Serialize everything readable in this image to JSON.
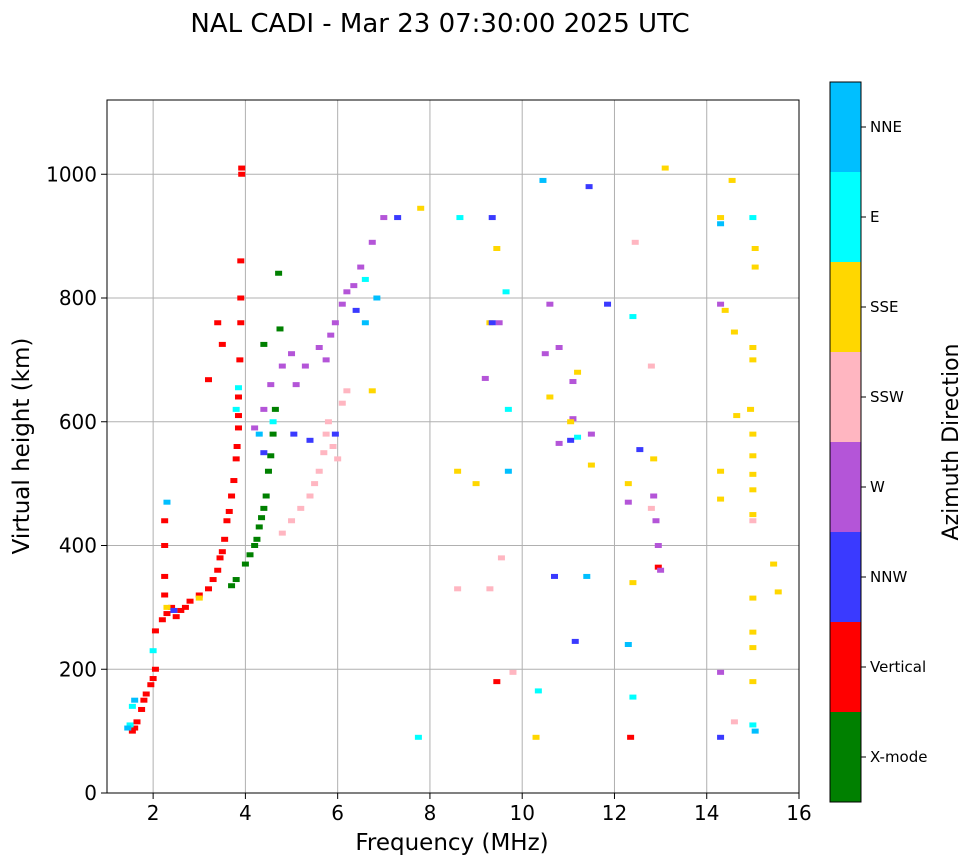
{
  "chart_data": {
    "type": "scatter",
    "title": "NAL CADI - Mar 23 07:30:00 2025 UTC",
    "xlabel": "Frequency (MHz)",
    "ylabel": "Virtual height (km)",
    "xlim": [
      1.0,
      16.0
    ],
    "ylim": [
      0,
      1120
    ],
    "xticks": [
      "2",
      "4",
      "6",
      "8",
      "10",
      "12",
      "14",
      "16"
    ],
    "yticks": [
      "0",
      "200",
      "400",
      "600",
      "800",
      "1000"
    ],
    "grid": true,
    "colorbar": {
      "label": "Azimuth Direction",
      "categories": [
        {
          "name": "X-mode",
          "color": "#008000"
        },
        {
          "name": "Vertical",
          "color": "#ff0000"
        },
        {
          "name": "NNW",
          "color": "#3a3aff"
        },
        {
          "name": "W",
          "color": "#b455d8"
        },
        {
          "name": "SSW",
          "color": "#ffb6c1"
        },
        {
          "name": "SSE",
          "color": "#ffd700"
        },
        {
          "name": "E",
          "color": "#00ffff"
        },
        {
          "name": "NNE",
          "color": "#00bfff"
        }
      ]
    },
    "series": [
      {
        "name": "Vertical",
        "points": [
          [
            1.55,
            100
          ],
          [
            1.6,
            105
          ],
          [
            1.65,
            115
          ],
          [
            1.75,
            135
          ],
          [
            1.8,
            150
          ],
          [
            1.85,
            160
          ],
          [
            1.95,
            175
          ],
          [
            2.0,
            185
          ],
          [
            2.05,
            200
          ],
          [
            2.05,
            262
          ],
          [
            2.2,
            280
          ],
          [
            2.25,
            320
          ],
          [
            2.25,
            350
          ],
          [
            2.25,
            400
          ],
          [
            2.25,
            440
          ],
          [
            2.3,
            290
          ],
          [
            2.4,
            300
          ],
          [
            2.5,
            285
          ],
          [
            2.6,
            295
          ],
          [
            2.7,
            300
          ],
          [
            2.8,
            310
          ],
          [
            3.0,
            320
          ],
          [
            3.2,
            330
          ],
          [
            3.3,
            345
          ],
          [
            3.4,
            360
          ],
          [
            3.45,
            380
          ],
          [
            3.5,
            390
          ],
          [
            3.55,
            410
          ],
          [
            3.6,
            440
          ],
          [
            3.65,
            455
          ],
          [
            3.7,
            480
          ],
          [
            3.75,
            505
          ],
          [
            3.8,
            540
          ],
          [
            3.82,
            560
          ],
          [
            3.85,
            590
          ],
          [
            3.85,
            610
          ],
          [
            3.85,
            640
          ],
          [
            3.88,
            700
          ],
          [
            3.9,
            760
          ],
          [
            3.9,
            800
          ],
          [
            3.9,
            860
          ],
          [
            3.92,
            1000
          ],
          [
            3.92,
            1010
          ],
          [
            3.4,
            760
          ],
          [
            3.5,
            725
          ],
          [
            3.2,
            668
          ],
          [
            9.45,
            180
          ],
          [
            12.35,
            90
          ],
          [
            12.95,
            365
          ]
        ]
      },
      {
        "name": "X-mode",
        "points": [
          [
            3.7,
            335
          ],
          [
            3.8,
            345
          ],
          [
            4.0,
            370
          ],
          [
            4.1,
            385
          ],
          [
            4.2,
            400
          ],
          [
            4.25,
            410
          ],
          [
            4.3,
            430
          ],
          [
            4.35,
            445
          ],
          [
            4.4,
            460
          ],
          [
            4.45,
            480
          ],
          [
            4.5,
            520
          ],
          [
            4.55,
            545
          ],
          [
            4.6,
            580
          ],
          [
            4.65,
            620
          ],
          [
            4.75,
            750
          ],
          [
            4.72,
            840
          ],
          [
            4.4,
            725
          ]
        ]
      },
      {
        "name": "W",
        "points": [
          [
            4.2,
            590
          ],
          [
            4.4,
            620
          ],
          [
            4.55,
            660
          ],
          [
            4.8,
            690
          ],
          [
            5.0,
            710
          ],
          [
            5.1,
            660
          ],
          [
            5.3,
            690
          ],
          [
            5.6,
            720
          ],
          [
            5.75,
            700
          ],
          [
            5.85,
            740
          ],
          [
            5.95,
            760
          ],
          [
            6.1,
            790
          ],
          [
            6.2,
            810
          ],
          [
            6.35,
            820
          ],
          [
            6.5,
            850
          ],
          [
            6.75,
            890
          ],
          [
            7.0,
            930
          ],
          [
            9.2,
            670
          ],
          [
            9.5,
            760
          ],
          [
            10.5,
            710
          ],
          [
            10.8,
            720
          ],
          [
            10.8,
            565
          ],
          [
            11.1,
            665
          ],
          [
            11.1,
            605
          ],
          [
            10.6,
            790
          ],
          [
            11.5,
            580
          ],
          [
            12.3,
            470
          ],
          [
            12.85,
            480
          ],
          [
            12.9,
            440
          ],
          [
            12.95,
            400
          ],
          [
            13.0,
            360
          ],
          [
            14.3,
            790
          ],
          [
            14.3,
            195
          ]
        ]
      },
      {
        "name": "SSW",
        "points": [
          [
            4.8,
            420
          ],
          [
            5.0,
            440
          ],
          [
            5.2,
            460
          ],
          [
            5.4,
            480
          ],
          [
            5.5,
            500
          ],
          [
            5.6,
            520
          ],
          [
            5.7,
            550
          ],
          [
            5.75,
            580
          ],
          [
            5.8,
            600
          ],
          [
            5.9,
            560
          ],
          [
            6.0,
            540
          ],
          [
            6.1,
            630
          ],
          [
            6.2,
            650
          ],
          [
            8.6,
            330
          ],
          [
            9.3,
            330
          ],
          [
            9.55,
            380
          ],
          [
            9.8,
            195
          ],
          [
            12.45,
            890
          ],
          [
            12.8,
            690
          ],
          [
            12.8,
            460
          ],
          [
            14.6,
            115
          ],
          [
            15.0,
            440
          ]
        ]
      },
      {
        "name": "SSE",
        "points": [
          [
            2.3,
            300
          ],
          [
            3.0,
            315
          ],
          [
            6.75,
            650
          ],
          [
            7.8,
            945
          ],
          [
            8.6,
            520
          ],
          [
            9.0,
            500
          ],
          [
            9.3,
            760
          ],
          [
            9.45,
            880
          ],
          [
            10.3,
            90
          ],
          [
            10.6,
            640
          ],
          [
            11.05,
            600
          ],
          [
            11.2,
            680
          ],
          [
            11.5,
            530
          ],
          [
            12.3,
            500
          ],
          [
            12.4,
            340
          ],
          [
            12.85,
            540
          ],
          [
            13.1,
            1010
          ],
          [
            14.3,
            930
          ],
          [
            14.3,
            520
          ],
          [
            14.3,
            475
          ],
          [
            14.4,
            780
          ],
          [
            14.55,
            990
          ],
          [
            14.6,
            745
          ],
          [
            14.65,
            610
          ],
          [
            14.95,
            620
          ],
          [
            15.0,
            720
          ],
          [
            15.0,
            700
          ],
          [
            15.0,
            580
          ],
          [
            15.0,
            545
          ],
          [
            15.0,
            515
          ],
          [
            15.0,
            490
          ],
          [
            15.0,
            450
          ],
          [
            15.0,
            315
          ],
          [
            15.0,
            260
          ],
          [
            15.0,
            235
          ],
          [
            15.0,
            180
          ],
          [
            15.05,
            880
          ],
          [
            15.05,
            850
          ],
          [
            15.45,
            370
          ],
          [
            15.55,
            325
          ]
        ]
      },
      {
        "name": "E",
        "points": [
          [
            1.5,
            110
          ],
          [
            1.55,
            140
          ],
          [
            2.0,
            230
          ],
          [
            3.8,
            620
          ],
          [
            3.85,
            655
          ],
          [
            4.6,
            600
          ],
          [
            6.6,
            830
          ],
          [
            7.75,
            90
          ],
          [
            8.65,
            930
          ],
          [
            9.65,
            810
          ],
          [
            9.7,
            620
          ],
          [
            10.35,
            165
          ],
          [
            11.2,
            575
          ],
          [
            12.4,
            770
          ],
          [
            12.4,
            155
          ],
          [
            15.0,
            110
          ],
          [
            15.0,
            930
          ]
        ]
      },
      {
        "name": "NNW",
        "points": [
          [
            2.45,
            295
          ],
          [
            4.4,
            550
          ],
          [
            5.05,
            580
          ],
          [
            5.4,
            570
          ],
          [
            5.95,
            580
          ],
          [
            6.4,
            780
          ],
          [
            7.3,
            930
          ],
          [
            9.35,
            760
          ],
          [
            9.35,
            930
          ],
          [
            10.7,
            350
          ],
          [
            11.05,
            570
          ],
          [
            11.15,
            245
          ],
          [
            11.45,
            980
          ],
          [
            12.55,
            555
          ],
          [
            14.3,
            90
          ],
          [
            11.85,
            790
          ]
        ]
      },
      {
        "name": "NNE",
        "points": [
          [
            1.45,
            105
          ],
          [
            1.6,
            150
          ],
          [
            2.3,
            470
          ],
          [
            4.3,
            580
          ],
          [
            6.6,
            760
          ],
          [
            6.85,
            800
          ],
          [
            9.7,
            520
          ],
          [
            10.45,
            990
          ],
          [
            11.4,
            350
          ],
          [
            12.3,
            240
          ],
          [
            14.3,
            920
          ],
          [
            15.05,
            100
          ]
        ]
      }
    ]
  }
}
